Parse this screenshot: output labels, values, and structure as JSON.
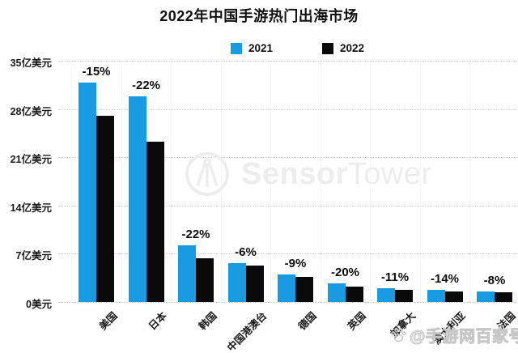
{
  "title": "2022年中国手游热门出海市场",
  "legend": {
    "items": [
      {
        "label": "2021",
        "color": "#189BE1"
      },
      {
        "label": "2022",
        "color": "#0a0a0a"
      }
    ]
  },
  "watermarks": {
    "sensortower_bold": "Sensor",
    "sensortower_light": "Tower",
    "credit": "@手游网百家号"
  },
  "chart_data": {
    "type": "bar",
    "title": "2022年中国手游热门出海市场",
    "unit": "亿美元",
    "categories": [
      "美国",
      "日本",
      "韩国",
      "中国港澳台",
      "德国",
      "英国",
      "加拿大",
      "澳大利亚",
      "法国"
    ],
    "series": [
      {
        "name": "2021",
        "color": "#189BE1",
        "values": [
          31.8,
          29.8,
          8.2,
          5.6,
          4.0,
          2.7,
          2.0,
          1.8,
          1.5
        ]
      },
      {
        "name": "2022",
        "color": "#0a0a0a",
        "values": [
          27.0,
          23.2,
          6.4,
          5.3,
          3.6,
          2.2,
          1.8,
          1.55,
          1.4
        ]
      }
    ],
    "change_labels": [
      "-15%",
      "-22%",
      "-22%",
      "-6%",
      "-9%",
      "-20%",
      "-11%",
      "-14%",
      "-8%"
    ],
    "y_ticks": [
      {
        "label": "35亿美元",
        "value": 35
      },
      {
        "label": "28亿美元",
        "value": 28
      },
      {
        "label": "21亿美元",
        "value": 21
      },
      {
        "label": "14亿美元",
        "value": 14
      },
      {
        "label": "7亿美元",
        "value": 7
      },
      {
        "label": "0美元",
        "value": 0
      }
    ],
    "ylim": [
      0,
      35
    ],
    "grid": true,
    "legend_position": "top"
  }
}
